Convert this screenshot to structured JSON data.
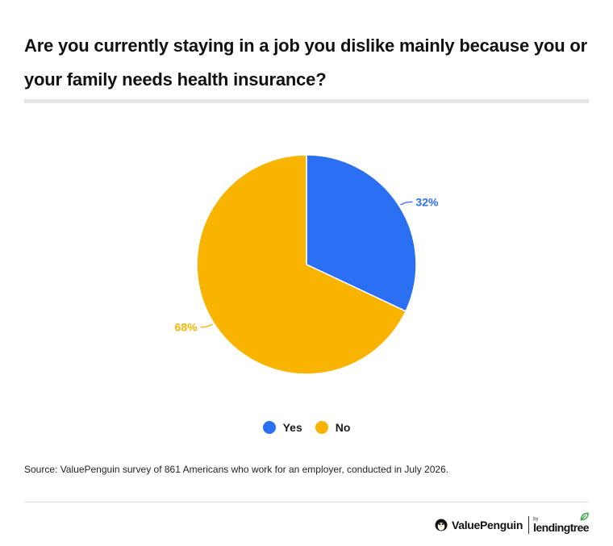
{
  "chart_data": {
    "type": "pie",
    "title": "Are you currently staying in a job you dislike mainly because you or your family needs health insurance?",
    "slices": [
      {
        "name": "Yes",
        "value": 32,
        "label": "32%",
        "color": "#2b6ff2"
      },
      {
        "name": "No",
        "value": 68,
        "label": "68%",
        "color": "#f8b400"
      }
    ],
    "legend_placement": "bottom"
  },
  "source": "Source: ValuePenguin survey of 861 Americans who work for an employer, conducted in July 2026.",
  "branding": {
    "valuepenguin": "ValuePenguin",
    "lendingtree_by": "by",
    "lendingtree": "lendingtree"
  },
  "icons": {
    "penguin": "penguin-icon",
    "leaf": "leaf-icon"
  }
}
